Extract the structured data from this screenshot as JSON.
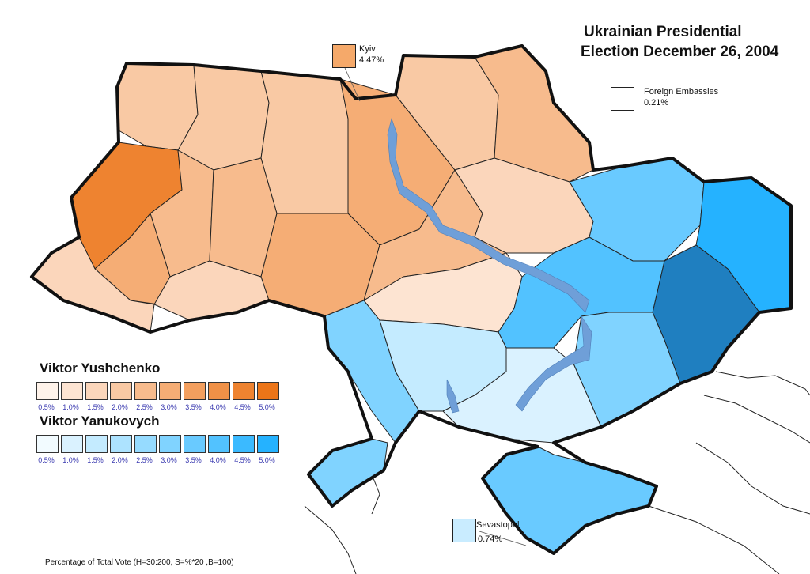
{
  "title": {
    "line1": "Ukrainian Presidential",
    "line2": "Election December 26, 2004"
  },
  "callouts": {
    "kyiv": {
      "name": "Kyiv",
      "value": "4.47%",
      "color": "#f5a96a"
    },
    "embassies": {
      "name": "Foreign Embassies",
      "value": "0.21%",
      "color": "#ffffff"
    },
    "sevastopol": {
      "name": "Sevastopol",
      "value": "0.74%",
      "color": "#c9ecff"
    }
  },
  "legend": {
    "yushchenko": {
      "name": "Viktor Yushchenko",
      "ticks": [
        "0.5%",
        "1.0%",
        "1.5%",
        "2.0%",
        "2.5%",
        "3.0%",
        "3.5%",
        "4.0%",
        "4.5%",
        "5.0%"
      ],
      "colors": [
        "#fff3ea",
        "#fde4d2",
        "#fbd6bb",
        "#f9c9a4",
        "#f7bb8d",
        "#f5ad75",
        "#f39f5e",
        "#f09147",
        "#ee8330",
        "#ec7518"
      ]
    },
    "yanukovych": {
      "name": "Viktor Yanukovych",
      "ticks": [
        "0.5%",
        "1.0%",
        "1.5%",
        "2.0%",
        "2.5%",
        "3.0%",
        "3.5%",
        "4.0%",
        "4.5%",
        "5.0%"
      ],
      "colors": [
        "#f2fbff",
        "#daf2ff",
        "#c4ebff",
        "#ade3ff",
        "#96dbff",
        "#80d3ff",
        "#69caff",
        "#52c2ff",
        "#3bbaff",
        "#25b2ff"
      ]
    }
  },
  "footnote": "Percentage of Total Vote (H=30:200, S=%*20 ,B=100)",
  "colors": {
    "water": "#6f9fd8",
    "border": "#111111"
  }
}
